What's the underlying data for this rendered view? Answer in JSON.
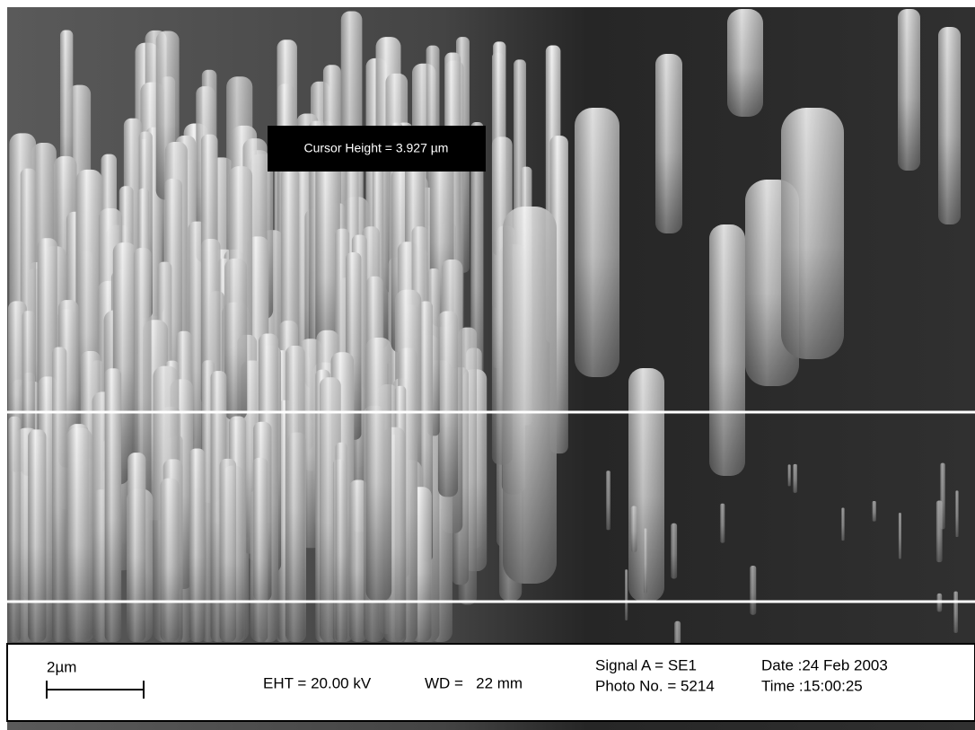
{
  "overlay": {
    "cursor_label": "Cursor Height = 3.927 µm"
  },
  "info_bar": {
    "scale_label": "2µm",
    "eht": "EHT = 20.00 kV",
    "wd": "WD =   22 mm",
    "signal": "Signal A = SE1",
    "photo_no": "Photo No. = 5214",
    "date": "Date :24 Feb 2003",
    "time": "Time :15:00:25"
  }
}
